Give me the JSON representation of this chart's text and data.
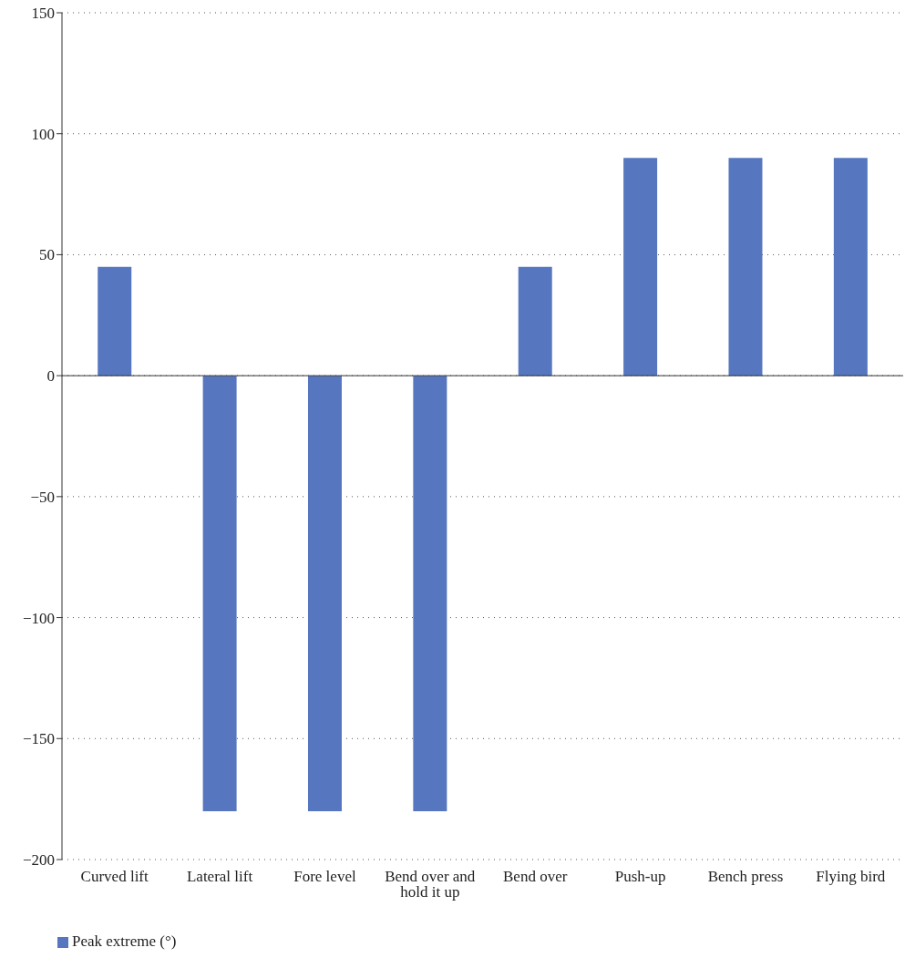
{
  "chart_data": {
    "type": "bar",
    "categories": [
      "Curved lift",
      "Lateral lift",
      "Fore level",
      "Bend over and hold it up",
      "Bend over",
      "Push-up",
      "Bench press",
      "Flying bird"
    ],
    "series": [
      {
        "name": "Peak extreme (°)",
        "color": "#5677bf",
        "values": [
          45,
          -180,
          -180,
          -180,
          45,
          90,
          90,
          90
        ]
      }
    ],
    "ylim": [
      -200,
      150
    ],
    "yticks": [
      -200,
      -150,
      -100,
      -50,
      0,
      50,
      100,
      150
    ],
    "grid": "y",
    "legend": "bottom left"
  }
}
